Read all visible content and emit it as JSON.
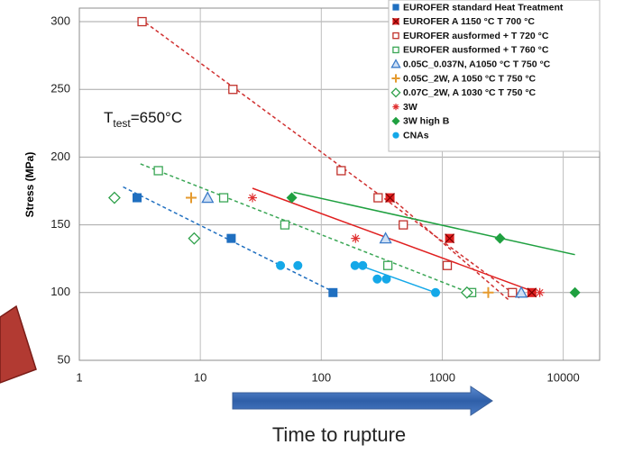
{
  "chart_data": {
    "type": "scatter",
    "y_label": "Stress (MPa)",
    "x_label": "Time to rupture",
    "annotation": {
      "base": "T",
      "sub": "test",
      "rest": "=650°C"
    },
    "xlog": true,
    "grid": true,
    "legend": "upper right",
    "xlim": [
      1,
      20000
    ],
    "ylim": [
      50,
      310
    ],
    "xticks": [
      1,
      10,
      100,
      1000,
      10000
    ],
    "yticks": [
      50,
      100,
      150,
      200,
      250,
      300
    ],
    "series": [
      {
        "name": "EUROFER standard Heat Treatment",
        "color": "#1f6fc0",
        "marker": "square",
        "x": [
          3,
          18,
          125
        ],
        "values": [
          170,
          140,
          100
        ]
      },
      {
        "name": "EUROFER A 1150 °C T 700 °C",
        "color": "#e02020",
        "marker": "xsquare",
        "x": [
          370,
          1150,
          5500
        ],
        "values": [
          170,
          140,
          100
        ]
      },
      {
        "name": "EUROFER ausformed + T 720 °C",
        "color": "#c0302a",
        "marker": "open-square",
        "x": [
          3.3,
          18.6,
          146,
          295,
          476,
          1100,
          3800
        ],
        "values": [
          300,
          250,
          190,
          170,
          150,
          120,
          100
        ]
      },
      {
        "name": "EUROFER ausformed + T 760 °C",
        "color": "#3aa655",
        "marker": "open-square",
        "x": [
          4.5,
          15.6,
          50,
          355,
          1750
        ],
        "values": [
          190,
          170,
          150,
          120,
          100
        ]
      },
      {
        "name": "0.05C_0.037N, A1050 °C T 750 °C",
        "color": "#3d7cc9",
        "marker": "triangle",
        "x": [
          11.5,
          340,
          4500
        ],
        "values": [
          170,
          140,
          100
        ]
      },
      {
        "name": "0.05C_2W, A 1050 °C T 750 °C",
        "color": "#e59a2e",
        "marker": "plus",
        "x": [
          8.4,
          2400
        ],
        "values": [
          170,
          100
        ]
      },
      {
        "name": "0.07C_2W, A 1030 °C T 750 °C",
        "color": "#2ea04a",
        "marker": "open-diamond",
        "x": [
          1.95,
          8.9,
          1600
        ],
        "values": [
          170,
          140,
          100
        ]
      },
      {
        "name": "3W",
        "color": "#e03030",
        "marker": "asterisk",
        "x": [
          27,
          192,
          6400
        ],
        "values": [
          170,
          140,
          100
        ]
      },
      {
        "name": "3W high B",
        "color": "#1fa040",
        "marker": "diamond",
        "x": [
          57,
          3000,
          12500
        ],
        "values": [
          170,
          140,
          100
        ]
      },
      {
        "name": "CNAs",
        "color": "#14a8e8",
        "marker": "circle",
        "x": [
          46,
          64,
          190,
          220,
          290,
          345,
          880
        ],
        "values": [
          120,
          120,
          120,
          120,
          110,
          110,
          100
        ]
      }
    ],
    "trendlines": [
      {
        "color": "#1f6fc0",
        "dashed": true,
        "x": [
          2.3,
          130
        ],
        "values": [
          178,
          100
        ]
      },
      {
        "color": "#d03030",
        "dashed": true,
        "x": [
          3.2,
          4500
        ],
        "values": [
          302,
          95
        ]
      },
      {
        "color": "#d03030",
        "dashed": true,
        "x": [
          345,
          3600
        ],
        "values": [
          173,
          94
        ]
      },
      {
        "color": "#3aa655",
        "dashed": true,
        "x": [
          3.2,
          1900
        ],
        "values": [
          195,
          98
        ]
      },
      {
        "color": "#e02020",
        "dashed": false,
        "x": [
          27,
          6000
        ],
        "values": [
          177,
          100
        ]
      },
      {
        "color": "#1fa040",
        "dashed": false,
        "x": [
          59,
          12500
        ],
        "values": [
          174,
          128
        ]
      },
      {
        "color": "#14a8e8",
        "dashed": false,
        "x": [
          180,
          880
        ],
        "values": [
          122,
          100
        ]
      }
    ]
  }
}
